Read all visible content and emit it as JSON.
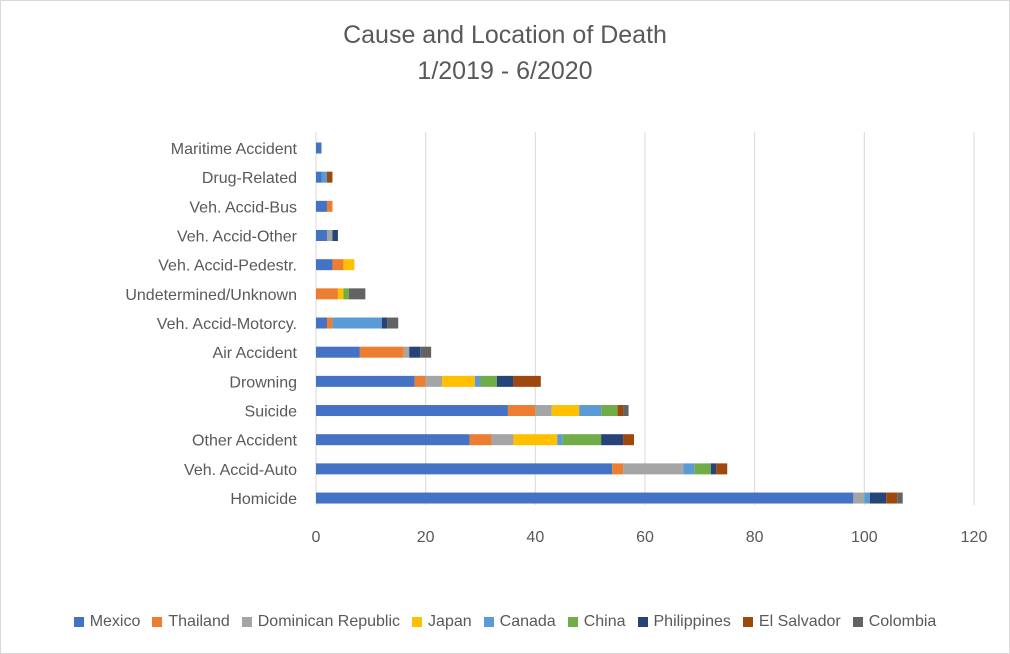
{
  "chart_data": {
    "type": "bar",
    "orientation": "horizontal",
    "stacked": true,
    "title": "Cause and Location of Death",
    "subtitle": "1/2019 - 6/2020",
    "xlim": [
      0,
      120
    ],
    "xticks": [
      0,
      20,
      40,
      60,
      80,
      100,
      120
    ],
    "grid": "vertical",
    "legend_position": "bottom",
    "categories": [
      "Maritime Accident",
      "Drug-Related",
      "Veh. Accid-Bus",
      "Veh. Accid-Other",
      "Veh. Accid-Pedestr.",
      "Undetermined/Unknown",
      "Veh. Accid-Motorcy.",
      "Air Accident",
      "Drowning",
      "Suicide",
      "Other Accident",
      "Veh. Accid-Auto",
      "Homicide"
    ],
    "series": [
      {
        "name": "Mexico",
        "color": "#4472c4",
        "values": [
          1,
          1,
          2,
          2,
          3,
          0,
          2,
          8,
          18,
          35,
          28,
          54,
          98
        ]
      },
      {
        "name": "Thailand",
        "color": "#ed7d31",
        "values": [
          0,
          0,
          1,
          0,
          2,
          4,
          1,
          8,
          2,
          5,
          4,
          2,
          0
        ]
      },
      {
        "name": "Dominican Republic",
        "color": "#a5a5a5",
        "values": [
          0,
          0,
          0,
          1,
          0,
          0,
          0,
          1,
          3,
          3,
          4,
          11,
          2
        ]
      },
      {
        "name": "Japan",
        "color": "#ffc000",
        "values": [
          0,
          0,
          0,
          0,
          2,
          1,
          0,
          0,
          6,
          5,
          8,
          0,
          0
        ]
      },
      {
        "name": "Canada",
        "color": "#5b9bd5",
        "values": [
          0,
          1,
          0,
          0,
          0,
          0,
          9,
          0,
          1,
          4,
          1,
          2,
          1
        ]
      },
      {
        "name": "China",
        "color": "#70ad47",
        "values": [
          0,
          0,
          0,
          0,
          0,
          1,
          0,
          0,
          3,
          3,
          7,
          3,
          0
        ]
      },
      {
        "name": "Philippines",
        "color": "#264478",
        "values": [
          0,
          0,
          0,
          1,
          0,
          0,
          1,
          2,
          3,
          0,
          4,
          1,
          3
        ]
      },
      {
        "name": "El Salvador",
        "color": "#9e480e",
        "values": [
          0,
          1,
          0,
          0,
          0,
          0,
          0,
          0,
          5,
          1,
          2,
          2,
          2
        ]
      },
      {
        "name": "Colombia",
        "color": "#636363",
        "values": [
          0,
          0,
          0,
          0,
          0,
          3,
          2,
          2,
          0,
          1,
          0,
          0,
          1
        ]
      }
    ]
  }
}
